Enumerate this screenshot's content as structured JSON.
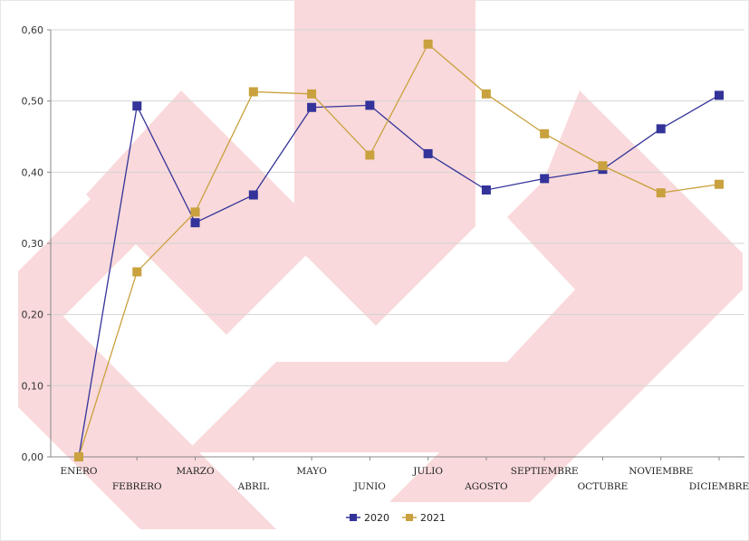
{
  "chart_data": {
    "type": "line",
    "title": "",
    "xlabel": "",
    "ylabel": "",
    "categories": [
      "ENERO",
      "FEBRERO",
      "MARZO",
      "ABRIL",
      "MAYO",
      "JUNIO",
      "JULIO",
      "AGOSTO",
      "SEPTIEMBRE",
      "OCTUBRE",
      "NOVIEMBRE",
      "DICIEMBRE"
    ],
    "series": [
      {
        "name": "2020",
        "color": "#33339a",
        "values": [
          0.0,
          0.493,
          0.329,
          0.368,
          0.491,
          0.494,
          0.426,
          0.375,
          0.391,
          0.404,
          0.461,
          0.508
        ]
      },
      {
        "name": "2021",
        "color": "#c9a13e",
        "values": [
          0.0,
          0.26,
          0.344,
          0.513,
          0.51,
          0.424,
          0.58,
          0.51,
          0.454,
          0.409,
          0.371,
          0.383
        ]
      }
    ],
    "ylim": [
      0,
      0.6
    ],
    "yticks": [
      "0,00",
      "0,10",
      "0,20",
      "0,30",
      "0,40",
      "0,50",
      "0,60"
    ],
    "grid": true,
    "legend_position": "bottom-center",
    "marker": "square",
    "watermark_color": "#f8d7d9"
  }
}
